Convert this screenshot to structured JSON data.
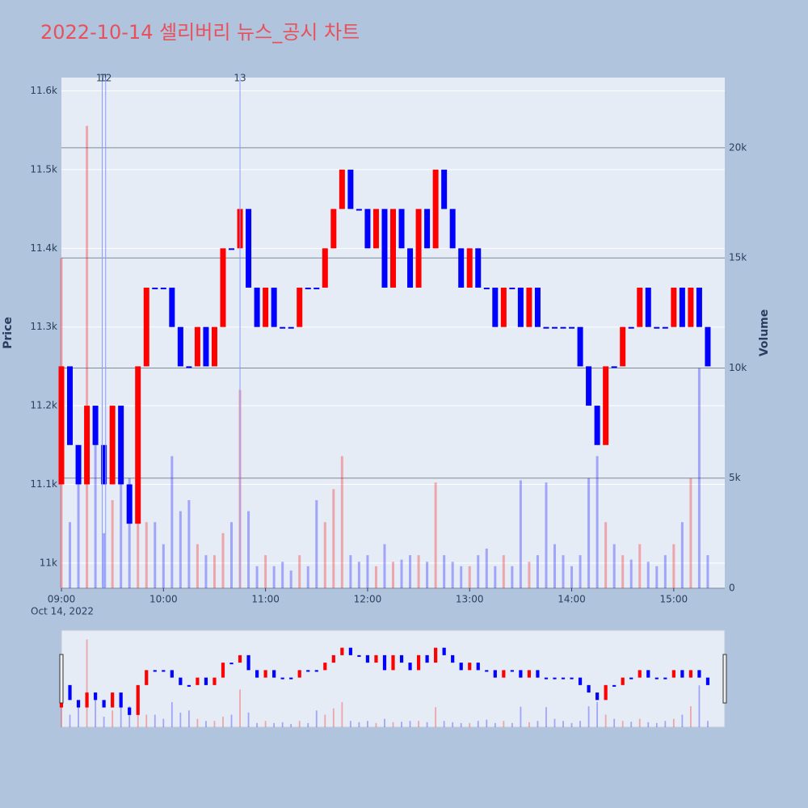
{
  "chart_data": {
    "type": "candlestick",
    "title": "2022-10-14 셀리버리 뉴스_공시 차트",
    "y_title": "Price",
    "y2_title": "Volume",
    "x": [
      "09:00",
      "09:05",
      "09:10",
      "09:15",
      "09:20",
      "09:25",
      "09:30",
      "09:35",
      "09:40",
      "09:45",
      "09:50",
      "09:55",
      "10:00",
      "10:05",
      "10:10",
      "10:15",
      "10:20",
      "10:25",
      "10:30",
      "10:35",
      "10:40",
      "10:45",
      "10:50",
      "10:55",
      "11:00",
      "11:05",
      "11:10",
      "11:15",
      "11:20",
      "11:25",
      "11:30",
      "11:35",
      "11:40",
      "11:45",
      "11:50",
      "11:55",
      "12:00",
      "12:05",
      "12:10",
      "12:15",
      "12:20",
      "12:25",
      "12:30",
      "12:35",
      "12:40",
      "12:45",
      "12:50",
      "12:55",
      "13:00",
      "13:05",
      "13:10",
      "13:15",
      "13:20",
      "13:25",
      "13:30",
      "13:35",
      "13:40",
      "13:45",
      "13:50",
      "13:55",
      "14:00",
      "14:05",
      "14:10",
      "14:15",
      "14:20",
      "14:25",
      "14:30",
      "14:35",
      "14:40",
      "14:45",
      "14:50",
      "14:55",
      "15:00",
      "15:05",
      "15:10",
      "15:15",
      "15:20"
    ],
    "open": [
      11100,
      11250,
      11150,
      11100,
      11200,
      11150,
      11100,
      11200,
      11100,
      11050,
      11250,
      11350,
      11350,
      11350,
      11300,
      11250,
      11250,
      11300,
      11250,
      11300,
      11400,
      11400,
      11450,
      11350,
      11300,
      11350,
      11300,
      11300,
      11300,
      11350,
      11350,
      11350,
      11400,
      11450,
      11500,
      11450,
      11450,
      11400,
      11450,
      11350,
      11450,
      11400,
      11350,
      11450,
      11400,
      11500,
      11450,
      11400,
      11350,
      11400,
      11350,
      11350,
      11300,
      11350,
      11350,
      11300,
      11350,
      11300,
      11300,
      11300,
      11300,
      11300,
      11250,
      11200,
      11150,
      11250,
      11250,
      11300,
      11300,
      11350,
      11300,
      11300,
      11300,
      11350,
      11300,
      11350,
      11300
    ],
    "close": [
      11250,
      11150,
      11100,
      11200,
      11150,
      11100,
      11200,
      11100,
      11050,
      11250,
      11350,
      11350,
      11350,
      11300,
      11250,
      11250,
      11300,
      11250,
      11300,
      11400,
      11400,
      11450,
      11350,
      11300,
      11350,
      11300,
      11300,
      11300,
      11350,
      11350,
      11350,
      11400,
      11450,
      11500,
      11450,
      11450,
      11400,
      11450,
      11350,
      11450,
      11400,
      11350,
      11450,
      11400,
      11500,
      11450,
      11400,
      11350,
      11400,
      11350,
      11350,
      11300,
      11350,
      11350,
      11300,
      11350,
      11300,
      11300,
      11300,
      11300,
      11300,
      11250,
      11200,
      11150,
      11250,
      11250,
      11300,
      11300,
      11350,
      11300,
      11300,
      11300,
      11350,
      11300,
      11350,
      11300,
      11250
    ],
    "volume": [
      15000,
      3000,
      5000,
      21000,
      8000,
      2500,
      4000,
      8000,
      5000,
      4000,
      3000,
      3000,
      2000,
      6000,
      3500,
      4000,
      2000,
      1500,
      1500,
      2500,
      3000,
      9000,
      3500,
      1000,
      1500,
      1000,
      1200,
      800,
      1500,
      1000,
      4000,
      3000,
      4500,
      6000,
      1500,
      1200,
      1500,
      1000,
      2000,
      1200,
      1300,
      1500,
      1500,
      1200,
      4800,
      1500,
      1200,
      1000,
      1000,
      1500,
      1800,
      1000,
      1500,
      1000,
      4900,
      1200,
      1500,
      4800,
      2000,
      1500,
      1000,
      1500,
      5000,
      6000,
      3000,
      2000,
      1500,
      1300,
      2000,
      1200,
      1000,
      1500,
      2000,
      3000,
      5000,
      10000,
      1500
    ],
    "increasing_color": "#ff0000",
    "decreasing_color": "#0000ff",
    "xlim": [
      "09:00",
      "15:30"
    ],
    "xticks": [
      "09:00",
      "10:00",
      "11:00",
      "12:00",
      "13:00",
      "14:00",
      "15:00"
    ],
    "x_date_label": "Oct 14, 2022",
    "ylim": [
      10968,
      11617
    ],
    "yticks": [
      {
        "value": 11000,
        "label": "11k"
      },
      {
        "value": 11100,
        "label": "11.1k"
      },
      {
        "value": 11200,
        "label": "11.2k"
      },
      {
        "value": 11300,
        "label": "11.3k"
      },
      {
        "value": 11400,
        "label": "11.4k"
      },
      {
        "value": 11500,
        "label": "11.5k"
      },
      {
        "value": 11600,
        "label": "11.6k"
      }
    ],
    "y2lim": [
      0,
      23190
    ],
    "y2ticks": [
      0,
      {
        "value": 5000,
        "label": "5k"
      },
      {
        "value": 10000,
        "label": "10k"
      },
      {
        "value": 15000,
        "label": "15k"
      },
      {
        "value": 20000,
        "label": "20k"
      }
    ],
    "annotations": [
      {
        "x": "09:24",
        "label": "11"
      },
      {
        "x": "09:26",
        "label": "12"
      },
      {
        "x": "10:45",
        "label": "13"
      }
    ],
    "rangeslider": true
  }
}
